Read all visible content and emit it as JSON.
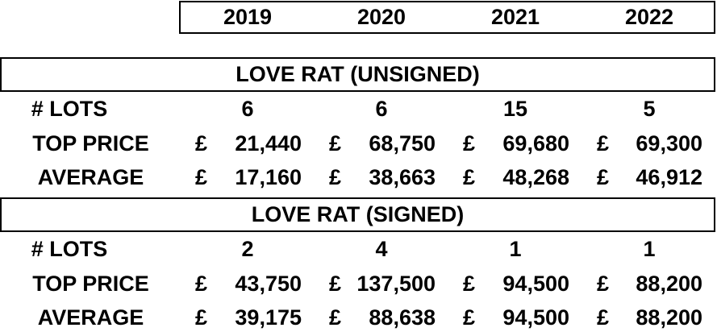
{
  "years": [
    "2019",
    "2020",
    "2021",
    "2022"
  ],
  "currency_symbol": "£",
  "sections": [
    {
      "title": "LOVE RAT (UNSIGNED)",
      "rows": {
        "lots_label": "# LOTS",
        "top_label": "TOP PRICE",
        "avg_label": "AVERAGE",
        "lots": [
          "6",
          "6",
          "15",
          "5"
        ],
        "top": [
          "21,440",
          "68,750",
          "69,680",
          "69,300"
        ],
        "avg": [
          "17,160",
          "38,663",
          "48,268",
          "46,912"
        ]
      }
    },
    {
      "title": "LOVE RAT (SIGNED)",
      "rows": {
        "lots_label": "# LOTS",
        "top_label": "TOP PRICE",
        "avg_label": "AVERAGE",
        "lots": [
          "2",
          "4",
          "1",
          "1"
        ],
        "top": [
          "43,750",
          "137,500",
          "94,500",
          "88,200"
        ],
        "avg": [
          "39,175",
          "88,638",
          "94,500",
          "88,200"
        ]
      }
    }
  ]
}
